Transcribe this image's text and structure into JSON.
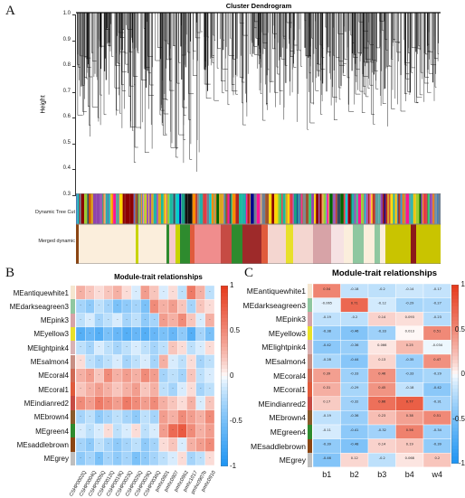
{
  "panelA": {
    "letter": "A",
    "title": "Cluster Dendrogram",
    "ylabel": "Height",
    "yticks": [
      "1.0",
      "0.9",
      "0.8",
      "0.7",
      "0.6",
      "0.5",
      "0.4",
      "0.3"
    ],
    "band1_label": "Dynamic Tree Cut",
    "band2_label": "Merged dynamic"
  },
  "panelB": {
    "letter": "B",
    "title": "Module-trait relationships",
    "rows": [
      "MEantiquewhite1",
      "MEdarkseagreen3",
      "MEpink3",
      "MEyellow3",
      "MElightpink4",
      "MEsalmon4",
      "MEcoral4",
      "MEcoral1",
      "MEindianred2",
      "MEbrown4",
      "MEgreen4",
      "MEsaddlebrown",
      "MEgrey"
    ],
    "row_colors": [
      "#f5e6cf",
      "#8fc7a0",
      "#d7a3a7",
      "#e8e02a",
      "#d9b2b4",
      "#c98f84",
      "#cf6a54",
      "#e05b3c",
      "#c64b44",
      "#8a5a2b",
      "#2e8b2e",
      "#8b4513",
      "#bebebe"
    ],
    "cols": [
      "CSHP0002Q",
      "CSHP0004Q",
      "CSHP0005Q",
      "CSHP0012Q",
      "CSHP0019Q",
      "CSHP0023Q",
      "CSHP0025Q",
      "CSHP0029Q",
      "CSHP0036Q",
      "pmhc0901",
      "pmhc0907",
      "pmhc0962",
      "pmhc1017",
      "pmhc0907b",
      "pmhc0910"
    ],
    "legend_ticks": [
      "1",
      "0.5",
      "0",
      "-0.5",
      "-1"
    ]
  },
  "panelC": {
    "letter": "C",
    "title": "Module-trait relationships",
    "rows": [
      "MEantiquewhite1",
      "MEdarkseagreen3",
      "MEpink3",
      "MEyellow3",
      "MElightpink4",
      "MEsalmon4",
      "MEcoral4",
      "MEcoral1",
      "MEindianred2",
      "MEbrown4",
      "MEgreen4",
      "MEsaddlebrown",
      "MEgrey"
    ],
    "row_colors": [
      "#f5e6cf",
      "#8fc7a0",
      "#d7a3a7",
      "#e8e02a",
      "#d9b2b4",
      "#c98f84",
      "#cf6a54",
      "#e05b3c",
      "#c64b44",
      "#8a5a2b",
      "#2e8b2e",
      "#8b4513",
      "#bebebe"
    ],
    "cols": [
      "b1",
      "b2",
      "b3",
      "b4",
      "w4"
    ],
    "values": [
      [
        0.54,
        -0.18,
        -0.2,
        -0.14,
        -0.17
      ],
      [
        -0.065,
        0.71,
        -0.12,
        -0.29,
        -0.27
      ],
      [
        -0.19,
        -0.2,
        0.14,
        0.093,
        -0.23
      ],
      [
        -0.38,
        -0.46,
        -0.33,
        0.013,
        0.51
      ],
      [
        -0.42,
        -0.36,
        0.066,
        0.25,
        -0.034
      ],
      [
        -0.28,
        -0.44,
        0.13,
        -0.35,
        0.47
      ],
      [
        0.39,
        -0.33,
        0.46,
        -0.33,
        -0.29
      ],
      [
        0.31,
        -0.29,
        0.45,
        -0.18,
        -0.42
      ],
      [
        0.17,
        -0.32,
        0.66,
        0.77,
        -0.31
      ],
      [
        -0.19,
        -0.36,
        0.23,
        0.38,
        0.51
      ],
      [
        -0.11,
        -0.41,
        -0.32,
        0.56,
        -0.34
      ],
      [
        -0.39,
        -0.48,
        0.14,
        0.19,
        -0.39
      ],
      [
        -0.46,
        0.12,
        -0.2,
        0.068,
        0.2
      ]
    ],
    "legend_ticks": [
      "1",
      "0.5",
      "0",
      "-0.5",
      "-1"
    ]
  }
}
